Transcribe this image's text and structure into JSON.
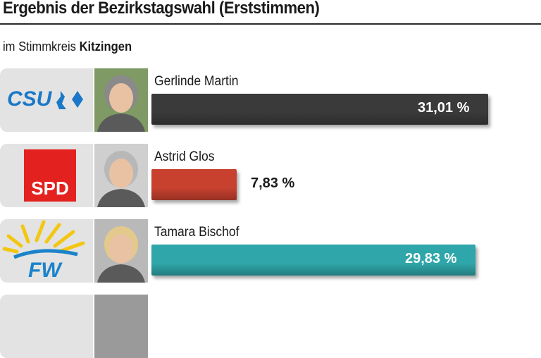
{
  "title": "Ergebnis der Bezirkstagswahl (Erststimmen)",
  "subtitle_prefix": "im Stimmkreis",
  "subtitle_place": "Kitzingen",
  "chart_data": {
    "type": "bar",
    "orientation": "horizontal",
    "unit": "%",
    "xlim": [
      0,
      31.01
    ],
    "categories": [
      "Gerlinde Martin",
      "Astrid Glos",
      "Tamara Bischof"
    ],
    "series": [
      {
        "values": [
          31.01,
          7.83,
          29.83
        ]
      }
    ],
    "value_labels": [
      "31,01 %",
      "7,83 %",
      "29,83 %"
    ],
    "parties": [
      "CSU",
      "SPD",
      "FW"
    ],
    "colors": [
      "#3a3a3a",
      "#c8412f",
      "#2fa6a9"
    ]
  }
}
